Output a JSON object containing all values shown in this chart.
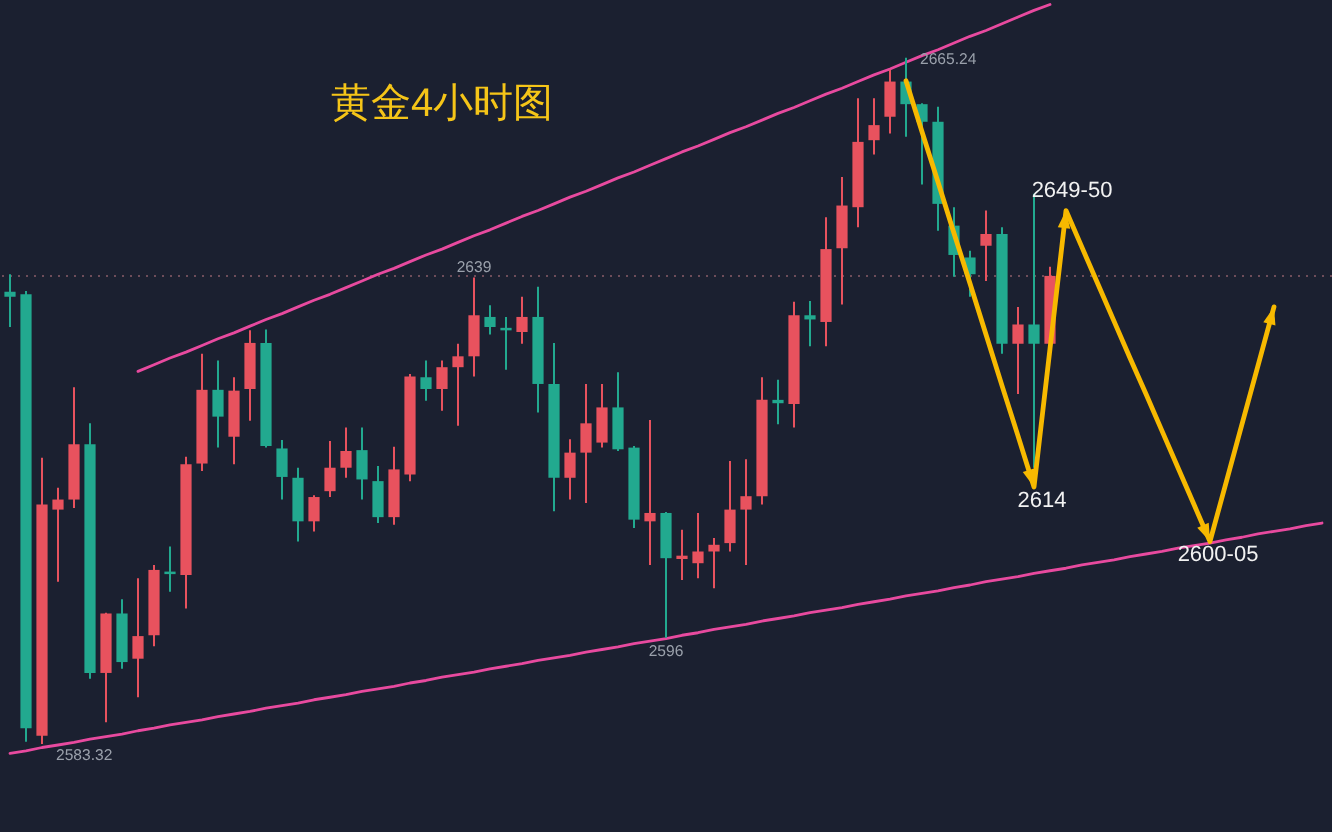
{
  "chart_data": {
    "type": "candlestick",
    "title": "黄金4小时图",
    "categories": [
      null,
      null,
      null,
      null,
      null,
      null,
      null,
      null,
      null,
      null,
      null,
      null,
      null,
      null,
      null,
      null,
      null,
      null,
      null,
      null,
      null,
      null,
      null,
      null,
      null,
      null,
      null,
      null,
      null,
      null,
      null,
      null,
      null,
      null,
      null,
      null,
      null,
      null,
      null,
      null,
      null,
      null,
      null,
      null,
      null,
      null,
      null,
      null,
      null,
      null,
      null,
      null,
      null,
      null,
      null,
      null,
      null,
      null,
      null,
      null,
      null,
      null,
      null,
      null,
      null,
      null,
      null,
      null,
      null,
      null,
      null,
      null,
      null,
      null,
      null,
      null,
      null,
      null,
      null,
      null,
      null,
      null,
      null
    ],
    "ohlc": [
      [
        2637.3,
        2639.4,
        2633.1,
        2636.7
      ],
      [
        2637.0,
        2637.4,
        2583.6,
        2585.2
      ],
      [
        2584.3,
        2617.5,
        2583.32,
        2611.9
      ],
      [
        2611.3,
        2613.9,
        2602.7,
        2612.5
      ],
      [
        2612.5,
        2625.9,
        2611.5,
        2619.1
      ],
      [
        2619.1,
        2621.6,
        2591.1,
        2591.8
      ],
      [
        2591.8,
        2599.0,
        2585.9,
        2598.9
      ],
      [
        2598.9,
        2600.6,
        2592.3,
        2593.1
      ],
      [
        2593.5,
        2603.1,
        2588.9,
        2596.2
      ],
      [
        2596.3,
        2604.7,
        2595.0,
        2604.1
      ],
      [
        2603.9,
        2606.9,
        2601.5,
        2603.6
      ],
      [
        2603.5,
        2617.6,
        2599.5,
        2616.7
      ],
      [
        2616.8,
        2629.9,
        2615.9,
        2625.6
      ],
      [
        2625.6,
        2629.1,
        2618.7,
        2622.4
      ],
      [
        2620.0,
        2627.1,
        2616.7,
        2625.5
      ],
      [
        2625.7,
        2632.7,
        2621.9,
        2631.2
      ],
      [
        2631.2,
        2632.8,
        2618.7,
        2618.9
      ],
      [
        2618.6,
        2619.6,
        2612.5,
        2615.2
      ],
      [
        2615.1,
        2616.3,
        2607.5,
        2609.9
      ],
      [
        2609.9,
        2613.0,
        2608.7,
        2612.8
      ],
      [
        2613.5,
        2619.5,
        2612.8,
        2616.3
      ],
      [
        2616.3,
        2621.1,
        2615.1,
        2618.3
      ],
      [
        2618.4,
        2621.1,
        2612.5,
        2614.9
      ],
      [
        2614.7,
        2616.5,
        2609.7,
        2610.4
      ],
      [
        2610.4,
        2618.8,
        2609.5,
        2616.1
      ],
      [
        2615.5,
        2627.5,
        2614.7,
        2627.2
      ],
      [
        2627.1,
        2629.1,
        2624.3,
        2625.7
      ],
      [
        2625.7,
        2629.1,
        2623.1,
        2628.3
      ],
      [
        2628.3,
        2631.1,
        2621.3,
        2629.6
      ],
      [
        2629.6,
        2639,
        2627.2,
        2634.5
      ],
      [
        2634.3,
        2635.7,
        2632.2,
        2633.1
      ],
      [
        2633.0,
        2634.3,
        2628.0,
        2632.7
      ],
      [
        2632.5,
        2636.7,
        2631.1,
        2634.3
      ],
      [
        2634.3,
        2637.9,
        2622.9,
        2626.3
      ],
      [
        2626.3,
        2631.2,
        2611.1,
        2615.1
      ],
      [
        2615.1,
        2619.7,
        2612.5,
        2618.1
      ],
      [
        2618.1,
        2626.3,
        2612.1,
        2621.6
      ],
      [
        2619.3,
        2626.3,
        2618.7,
        2623.5
      ],
      [
        2623.5,
        2627.7,
        2618.3,
        2618.5
      ],
      [
        2618.7,
        2618.9,
        2609.1,
        2610.1
      ],
      [
        2609.9,
        2622.0,
        2604.7,
        2610.9
      ],
      [
        2610.9,
        2611.0,
        2596,
        2605.5
      ],
      [
        2605.4,
        2608.9,
        2602.9,
        2605.8
      ],
      [
        2604.9,
        2610.9,
        2603.1,
        2606.3
      ],
      [
        2606.3,
        2607.9,
        2601.9,
        2607.1
      ],
      [
        2607.3,
        2617.1,
        2606.3,
        2611.3
      ],
      [
        2611.3,
        2617.3,
        2604.7,
        2612.9
      ],
      [
        2612.9,
        2627.1,
        2611.9,
        2624.4
      ],
      [
        2624.4,
        2626.8,
        2621.5,
        2624.0
      ],
      [
        2623.9,
        2636.1,
        2621.1,
        2634.5
      ],
      [
        2634.5,
        2636.2,
        2630.8,
        2634.0
      ],
      [
        2633.7,
        2646.2,
        2630.8,
        2642.4
      ],
      [
        2642.5,
        2651.0,
        2635.8,
        2647.6
      ],
      [
        2647.4,
        2660.4,
        2645.0,
        2655.2
      ],
      [
        2655.4,
        2660.4,
        2653.7,
        2657.2
      ],
      [
        2658.2,
        2663.8,
        2656.2,
        2662.4
      ],
      [
        2662.4,
        2665.24,
        2655.8,
        2659.7
      ],
      [
        2659.7,
        2659.8,
        2650.1,
        2657.6
      ],
      [
        2657.6,
        2659.4,
        2644.6,
        2647.8
      ],
      [
        2645.2,
        2647.4,
        2639.1,
        2641.7
      ],
      [
        2641.4,
        2642.2,
        2636.7,
        2639.4
      ],
      [
        2642.8,
        2647.0,
        2638.6,
        2644.2
      ],
      [
        2644.2,
        2645.0,
        2629.9,
        2631.1
      ],
      [
        2631.1,
        2635.5,
        2625.1,
        2633.4
      ],
      [
        2633.4,
        2649.0,
        2616.3,
        2631.1
      ],
      [
        2631.1,
        2640.3,
        2631.1,
        2639.2
      ],
      null,
      null,
      null,
      null,
      null,
      null,
      null,
      null,
      null,
      null,
      null,
      null,
      null,
      null,
      null,
      null,
      null
    ],
    "colors": [
      "#22a98f",
      "#22a98f",
      "#e8525e",
      "#e8525e",
      "#e8525e",
      "#22a98f",
      "#e8525e",
      "#22a98f",
      "#e8525e",
      "#e8525e",
      "#22a98f",
      "#e8525e",
      "#e8525e",
      "#22a98f",
      "#e8525e",
      "#e8525e",
      "#22a98f",
      "#22a98f",
      "#22a98f",
      "#e8525e",
      "#e8525e",
      "#e8525e",
      "#22a98f",
      "#22a98f",
      "#e8525e",
      "#e8525e",
      "#22a98f",
      "#e8525e",
      "#e8525e",
      "#e8525e",
      "#22a98f",
      "#22a98f",
      "#e8525e",
      "#22a98f",
      "#22a98f",
      "#e8525e",
      "#e8525e",
      "#e8525e",
      "#22a98f",
      "#22a98f",
      "#e8525e",
      "#22a98f",
      "#e8525e",
      "#e8525e",
      "#e8525e",
      "#e8525e",
      "#e8525e",
      "#e8525e",
      "#22a98f",
      "#e8525e",
      "#22a98f",
      "#e8525e",
      "#e8525e",
      "#e8525e",
      "#e8525e",
      "#e8525e",
      "#22a98f",
      "#22a98f",
      "#22a98f",
      "#22a98f",
      "#22a98f",
      "#e8525e",
      "#22a98f",
      "#e8525e",
      "#22a98f",
      "#e8525e",
      null,
      null,
      null,
      null,
      null,
      null,
      null,
      null,
      null,
      null,
      null,
      null,
      null,
      null,
      null,
      null,
      null
    ],
    "series": [
      {
        "type": "line",
        "color": "#e84a9f",
        "values": [
          null,
          null,
          null,
          null,
          null,
          null,
          null,
          null,
          2627.8,
          2628.6,
          2629.4,
          2630.1,
          2630.9,
          2631.7,
          2632.4,
          2633.2,
          2634.0,
          2634.7,
          2635.5,
          2636.3,
          2637.0,
          2637.8,
          2638.6,
          2639.4,
          2640.1,
          2640.9,
          2641.7,
          2642.4,
          2643.2,
          2644.0,
          2644.7,
          2645.5,
          2646.3,
          2647.0,
          2647.8,
          2648.6,
          2649.3,
          2650.1,
          2650.9,
          2651.6,
          2652.4,
          2653.2,
          2654.0,
          2654.7,
          2655.5,
          2656.3,
          2657.0,
          2657.8,
          2658.6,
          2659.3,
          2660.1,
          2660.9,
          2661.6,
          2662.4,
          2663.2,
          2663.9,
          2664.7,
          2665.5,
          2666.2,
          2667.0,
          2667.8,
          2668.5,
          2669.3,
          2670.1,
          2670.9,
          2671.6,
          null,
          null,
          null,
          null,
          null,
          null,
          null,
          null,
          null,
          null,
          null,
          null,
          null,
          null,
          null,
          null,
          null
        ]
      },
      {
        "type": "line",
        "color": "#e84a9f",
        "values": [
          2582.2,
          2582.5,
          2582.9,
          2583.2,
          2583.5,
          2583.9,
          2584.2,
          2584.5,
          2584.9,
          2585.2,
          2585.6,
          2585.9,
          2586.2,
          2586.6,
          2586.9,
          2587.2,
          2587.6,
          2587.9,
          2588.2,
          2588.6,
          2588.9,
          2589.2,
          2589.6,
          2589.9,
          2590.2,
          2590.6,
          2590.9,
          2591.3,
          2591.6,
          2591.9,
          2592.3,
          2592.6,
          2592.9,
          2593.3,
          2593.6,
          2593.9,
          2594.3,
          2594.6,
          2594.9,
          2595.3,
          2595.6,
          2595.9,
          2596.3,
          2596.6,
          2597.0,
          2597.3,
          2597.6,
          2598.0,
          2598.3,
          2598.6,
          2599.0,
          2599.3,
          2599.6,
          2600.0,
          2600.3,
          2600.6,
          2601.0,
          2601.3,
          2601.6,
          2602.0,
          2602.3,
          2602.7,
          2603.0,
          2603.3,
          2603.7,
          2604.0,
          2604.3,
          2604.7,
          2605.0,
          2605.3,
          2605.7,
          2606.0,
          2606.3,
          2606.7,
          2607.0,
          2607.3,
          2607.7,
          2608.0,
          2608.4,
          2608.7,
          2609.0,
          2609.4,
          2609.7
        ]
      },
      {
        "type": "line",
        "color": "#f7b900",
        "values": [
          null,
          null,
          null,
          null,
          null,
          null,
          null,
          null,
          null,
          null,
          null,
          null,
          null,
          null,
          null,
          null,
          null,
          null,
          null,
          null,
          null,
          null,
          null,
          null,
          null,
          null,
          null,
          null,
          null,
          null,
          null,
          null,
          null,
          null,
          null,
          null,
          null,
          null,
          null,
          null,
          null,
          null,
          null,
          null,
          null,
          null,
          null,
          null,
          null,
          null,
          null,
          null,
          null,
          null,
          null,
          null,
          2662.5,
          2656.4,
          2650.4,
          2644.3,
          2638.3,
          2632.2,
          2626.1,
          2620.1,
          2614,
          2630.5,
          2647,
          2642.6,
          2638.2,
          2633.8,
          2629.4,
          2625.1,
          2620.7,
          2616.3,
          2611.9,
          2607.5,
          2614.5,
          2621.5,
          2628.5,
          2635.5,
          null,
          null,
          null
        ]
      }
    ],
    "ref_lines": [
      {
        "axis": "y",
        "value": 2639.2,
        "line_style": "dotted",
        "color": "#6e4d5a"
      }
    ],
    "annotations": [
      {
        "text": "2583.32",
        "y": 2583.32
      },
      {
        "text": "2596",
        "y": 2596
      },
      {
        "text": "2639",
        "y": 2639
      },
      {
        "text": "2665.24",
        "y": 2665.24
      },
      {
        "text": "2614",
        "y": 2614
      },
      {
        "text": "2649-50",
        "y": 2647
      },
      {
        "text": "2600-05",
        "y": 2607.5
      }
    ]
  }
}
